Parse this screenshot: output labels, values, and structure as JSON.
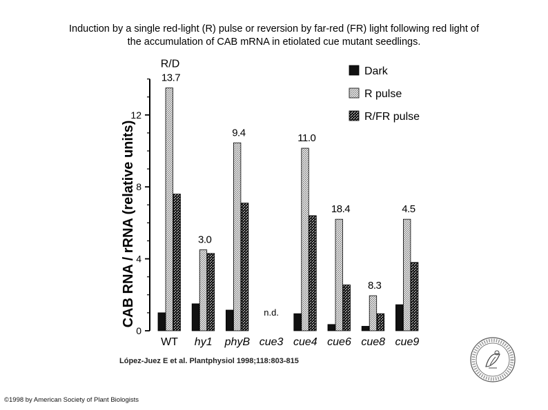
{
  "title_line1": "Induction by a single red-light (R) pulse or reversion by far-red (FR) light following red light of",
  "title_line2": "the accumulation of CAB mRNA in etiolated cue mutant seedlings.",
  "citation": "López-Juez E et al. Plantphysiol 1998;118:803-815",
  "copyright": "©1998 by American Society of Plant Biologists",
  "colors": {
    "dark": "#111111",
    "r_pulse": "#bdbdbd",
    "rfr_pulse": "#3a3a3a",
    "axis": "#000000"
  },
  "seal_icon": "aspb-seal-logo",
  "chart_data": {
    "type": "bar",
    "title": "",
    "xlabel": "",
    "ylabel": "CAB RNA / rRNA (relative units)",
    "ylim": [
      0,
      14
    ],
    "yticks": [
      "0",
      "4",
      "8",
      "12"
    ],
    "ytick_values": [
      0,
      4,
      8,
      12
    ],
    "categories": [
      "WT",
      "hy1",
      "phyB",
      "cue3",
      "cue4",
      "cue6",
      "cue8",
      "cue9"
    ],
    "ratio_header": "R/D",
    "ratios": [
      "13.7",
      "3.0",
      "9.4",
      "",
      "11.0",
      "18.4",
      "8.3",
      "4.5"
    ],
    "not_determined": [
      "",
      "",
      "",
      "n.d.",
      "",
      "",
      "",
      ""
    ],
    "legend_position": "top-right",
    "series": [
      {
        "name": "Dark",
        "pattern": "solid-black",
        "values": [
          1.0,
          1.5,
          1.15,
          null,
          0.95,
          0.35,
          0.25,
          1.45
        ]
      },
      {
        "name": "R pulse",
        "pattern": "light-stipple",
        "values": [
          13.5,
          4.5,
          10.45,
          null,
          10.15,
          6.2,
          1.95,
          6.2
        ]
      },
      {
        "name": "R/FR pulse",
        "pattern": "dark-hatch",
        "values": [
          7.6,
          4.3,
          7.1,
          null,
          6.4,
          2.55,
          0.95,
          3.8
        ]
      }
    ]
  }
}
